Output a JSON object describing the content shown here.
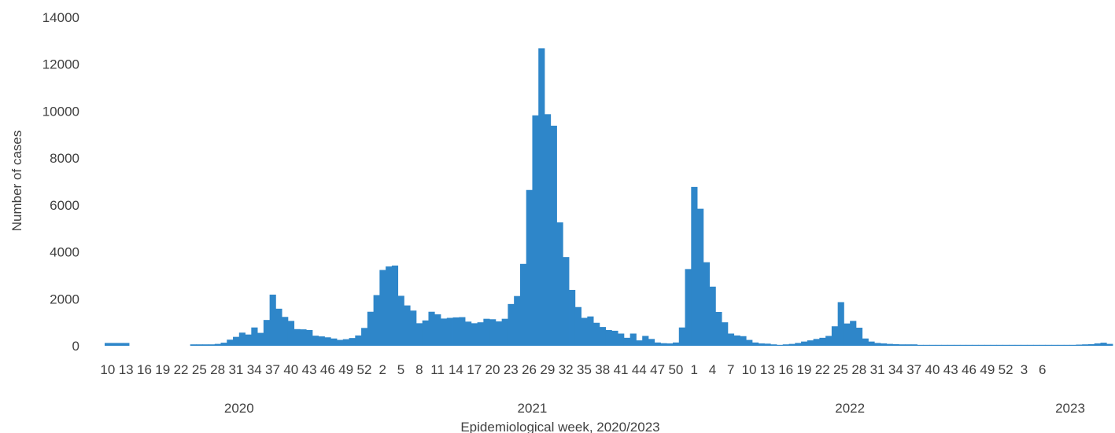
{
  "chart_data": {
    "type": "bar",
    "title": "",
    "xlabel": "Epidemiological week, 2020/2023",
    "ylabel": "Number of cases",
    "ylim": [
      0,
      14000
    ],
    "yticks": [
      0,
      2000,
      4000,
      6000,
      8000,
      10000,
      12000,
      14000
    ],
    "grid": false,
    "legend": "none",
    "bar_color": "#2e86c9",
    "years": [
      "2020",
      "2021",
      "2022",
      "2023"
    ],
    "week_tick_labels": [
      "10",
      "13",
      "16",
      "19",
      "22",
      "25",
      "28",
      "31",
      "34",
      "37",
      "40",
      "43",
      "46",
      "49",
      "52",
      "2",
      "5",
      "8",
      "11",
      "14",
      "17",
      "20",
      "23",
      "26",
      "29",
      "32",
      "35",
      "38",
      "41",
      "44",
      "47",
      "50",
      "1",
      "4",
      "7",
      "10",
      "13",
      "16",
      "19",
      "22",
      "25",
      "28",
      "31",
      "34",
      "37",
      "40",
      "43",
      "46",
      "49",
      "52",
      "3",
      "6"
    ],
    "first_week_label": "10",
    "values": [
      120,
      120,
      120,
      120,
      0,
      0,
      0,
      0,
      0,
      0,
      0,
      0,
      0,
      0,
      60,
      60,
      60,
      60,
      80,
      130,
      260,
      380,
      560,
      480,
      780,
      550,
      1100,
      2180,
      1580,
      1230,
      1060,
      710,
      700,
      670,
      430,
      400,
      360,
      310,
      250,
      280,
      330,
      440,
      760,
      1450,
      2160,
      3230,
      3380,
      3420,
      2130,
      1720,
      1500,
      960,
      1080,
      1450,
      1340,
      1160,
      1190,
      1210,
      1220,
      1030,
      960,
      1000,
      1150,
      1130,
      1040,
      1150,
      1780,
      2120,
      3490,
      6640,
      9820,
      12680,
      9870,
      9380,
      5260,
      3780,
      2380,
      1650,
      1190,
      1250,
      980,
      800,
      670,
      640,
      520,
      340,
      520,
      230,
      420,
      290,
      140,
      110,
      100,
      140,
      780,
      3270,
      6770,
      5840,
      3560,
      2520,
      1440,
      1000,
      520,
      440,
      410,
      250,
      140,
      100,
      90,
      60,
      40,
      60,
      80,
      120,
      180,
      230,
      290,
      340,
      420,
      830,
      1860,
      950,
      1060,
      770,
      310,
      180,
      120,
      100,
      80,
      70,
      60,
      60,
      60,
      40,
      40,
      40,
      40,
      40,
      40,
      40,
      40,
      40,
      40,
      40,
      40,
      40,
      40,
      40,
      40,
      40,
      40,
      40,
      40,
      40,
      40,
      40,
      40,
      40,
      40,
      50,
      60,
      70,
      100,
      130,
      80
    ]
  }
}
